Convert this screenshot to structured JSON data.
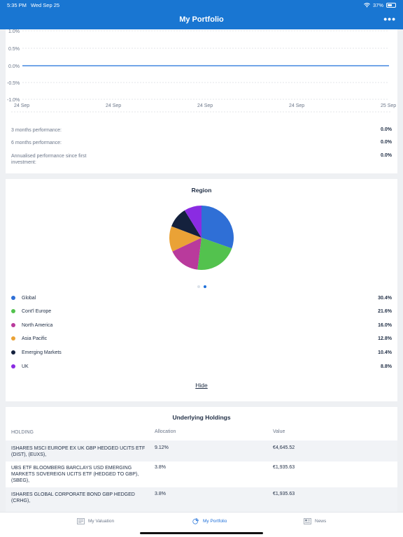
{
  "status_bar": {
    "time": "5:35 PM",
    "date": "Wed Sep 25",
    "battery": "37%"
  },
  "nav": {
    "title": "My Portfolio",
    "more_label": "•••"
  },
  "performance_chart": {
    "y_ticks": [
      "1.0%",
      "0.5%",
      "0.0%",
      "-0.5%",
      "-1.0%"
    ],
    "x_ticks": [
      "24 Sep",
      "24 Sep",
      "24 Sep",
      "24 Sep",
      "25 Sep"
    ],
    "series_color": "#1e6fd9"
  },
  "performance": [
    {
      "label": "3 months performance:",
      "value": "0.0%"
    },
    {
      "label": "6 months performance:",
      "value": "0.0%"
    },
    {
      "label": "Annualised performance since first investment:",
      "value": "0.0%"
    }
  ],
  "region": {
    "title": "Region",
    "hide_label": "Hide",
    "page_dots": [
      false,
      true
    ]
  },
  "chart_data": {
    "type": "pie",
    "title": "Region",
    "slices": [
      {
        "label": "Global",
        "value": 30.4,
        "display": "30.4%",
        "color": "#2f6fd6"
      },
      {
        "label": "Cont'l Europe",
        "value": 21.6,
        "display": "21.6%",
        "color": "#53c24e"
      },
      {
        "label": "North America",
        "value": 16.0,
        "display": "16.0%",
        "color": "#b93a9c"
      },
      {
        "label": "Asia Pacific",
        "value": 12.8,
        "display": "12.8%",
        "color": "#eaa236"
      },
      {
        "label": "Emerging Markets",
        "value": 10.4,
        "display": "10.4%",
        "color": "#14213d"
      },
      {
        "label": "UK",
        "value": 8.8,
        "display": "8.8%",
        "color": "#8a2be2"
      }
    ]
  },
  "holdings": {
    "title": "Underlying Holdings",
    "columns": [
      "Holding",
      "Allocation",
      "Value"
    ],
    "rows": [
      {
        "name": "ISHARES MSCI EUROPE EX UK GBP HEDGED UCITS ETF (DIST), (EUXS),",
        "allocation": "9.12%",
        "value": "€4,645.52"
      },
      {
        "name": "UBS ETF BLOOMBERG BARCLAYS USD EMERGING MARKETS SOVEREIGN UCITS ETF (HEDGED TO GBP), (SBEG),",
        "allocation": "3.8%",
        "value": "€1,935.63"
      },
      {
        "name": "ISHARES GLOBAL CORPORATE BOND GBP HEDGED (CRHG),",
        "allocation": "3.8%",
        "value": "€1,935.63"
      }
    ]
  },
  "tabs": [
    {
      "label": "My Valuation",
      "icon": "valuation-icon",
      "active": false
    },
    {
      "label": "My Portfolio",
      "icon": "pie-chart-icon",
      "active": true
    },
    {
      "label": "News",
      "icon": "newspaper-icon",
      "active": false
    }
  ]
}
